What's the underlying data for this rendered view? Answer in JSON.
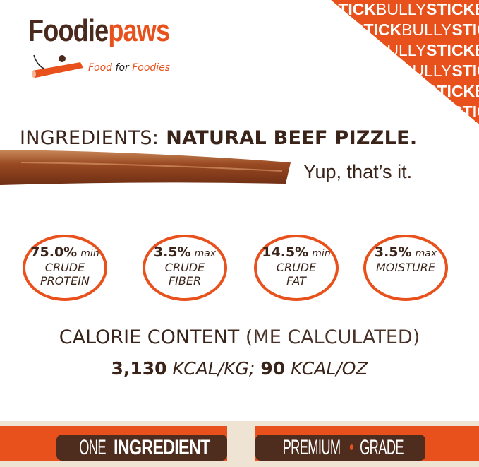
{
  "brand": {
    "name_part1": "Foodie",
    "name_part2": "paws",
    "tagline_word1": "Food",
    "tagline_word2": "for",
    "tagline_word3": "Foodies"
  },
  "corner_pattern": {
    "word1": "BULLY",
    "word2": "STICK"
  },
  "headline": {
    "label": "INGREDIENTS:",
    "value": "NATURAL BEEF PIZZLE."
  },
  "subline": "Yup, that’s it.",
  "nutrients": [
    {
      "value": "75.0%",
      "qualifier": "min",
      "line1": "CRUDE",
      "line2": "PROTEIN"
    },
    {
      "value": "3.5%",
      "qualifier": "max",
      "line1": "CRUDE",
      "line2": "FIBER"
    },
    {
      "value": "14.5%",
      "qualifier": "min",
      "line1": "CRUDE",
      "line2": "FAT"
    },
    {
      "value": "3.5%",
      "qualifier": "max",
      "line1": "MOISTURE",
      "line2": ""
    }
  ],
  "calorie": {
    "title": "CALORIE CONTENT",
    "note": "(ME CALCULATED)",
    "value1": "3,130",
    "unit1": "KCAL/KG;",
    "value2": "90",
    "unit2": "KCAL/OZ"
  },
  "banners": {
    "left_light": "ONE",
    "left_bold": "INGREDIENT",
    "right_a": "PREMIUM",
    "right_dot": "•",
    "right_b": "GRADE"
  },
  "colors": {
    "accent": "#e8501c",
    "brown": "#4e2c1e",
    "beige": "#efe3d4"
  }
}
